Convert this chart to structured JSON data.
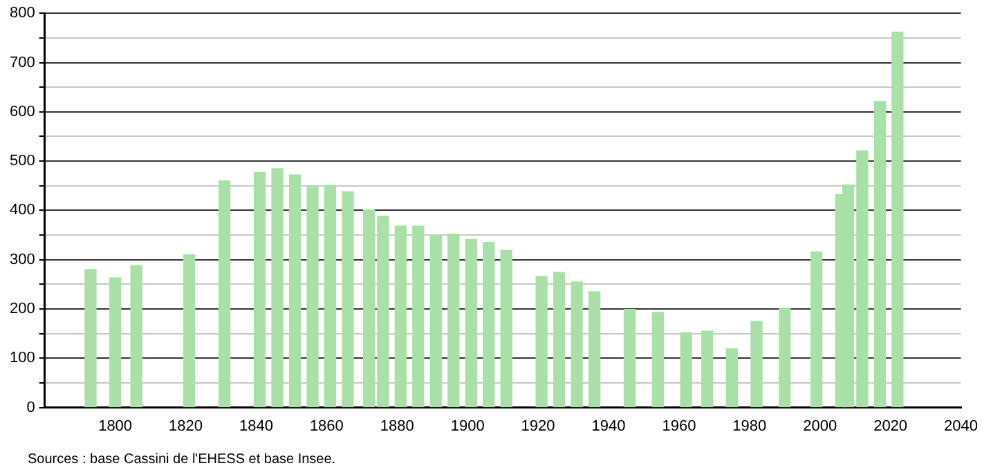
{
  "chart_data": {
    "type": "bar",
    "x": [
      1793,
      1800,
      1806,
      1821,
      1831,
      1841,
      1846,
      1851,
      1856,
      1861,
      1866,
      1872,
      1876,
      1881,
      1886,
      1891,
      1896,
      1901,
      1906,
      1911,
      1921,
      1926,
      1931,
      1936,
      1946,
      1954,
      1962,
      1968,
      1975,
      1982,
      1990,
      1999,
      2006,
      2008,
      2012,
      2017,
      2022
    ],
    "values": [
      280,
      263,
      288,
      310,
      460,
      477,
      485,
      472,
      447,
      451,
      438,
      401,
      388,
      368,
      368,
      349,
      352,
      341,
      335,
      319,
      266,
      274,
      255,
      235,
      199,
      193,
      152,
      155,
      119,
      175,
      202,
      316,
      432,
      452,
      521,
      621,
      762
    ],
    "color": "#a8e0a8",
    "xlim": [
      1780,
      2040
    ],
    "xticks": [
      1800,
      1820,
      1840,
      1860,
      1880,
      1900,
      1920,
      1940,
      1960,
      1980,
      2000,
      2020,
      2040
    ],
    "ylim": [
      0,
      800
    ],
    "yticks": [
      0,
      {
        "value": 50,
        "label": null
      },
      100,
      {
        "value": 150,
        "label": null
      },
      200,
      {
        "value": 250,
        "label": null
      },
      300,
      {
        "value": 350,
        "label": null
      },
      400,
      {
        "value": 450,
        "label": null
      },
      500,
      {
        "value": 550,
        "label": null
      },
      600,
      {
        "value": 650,
        "label": null
      },
      700,
      {
        "value": 750,
        "label": null
      },
      800
    ],
    "grid": "y",
    "legend": false,
    "annotations": [
      "Sources : base Cassini de l'EHESS et base Insee."
    ]
  }
}
